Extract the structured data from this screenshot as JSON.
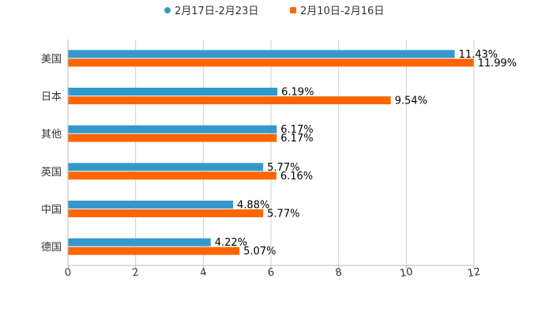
{
  "chart_data": {
    "type": "bar",
    "orientation": "horizontal",
    "categories": [
      "美国",
      "日本",
      "其他",
      "英国",
      "中国",
      "德国"
    ],
    "series": [
      {
        "name": "2月17日-2月23日",
        "color": "#3399CC",
        "values": [
          11.43,
          6.19,
          6.17,
          5.77,
          4.88,
          4.22
        ],
        "labels": [
          "11.43%",
          "6.19%",
          "6.17%",
          "5.77%",
          "4.88%",
          "4.22%"
        ]
      },
      {
        "name": "2月10日-2月16日",
        "color": "#FF6600",
        "values": [
          11.99,
          9.54,
          6.17,
          6.16,
          5.77,
          5.07
        ],
        "labels": [
          "11.99%",
          "9.54%",
          "6.17%",
          "6.16%",
          "5.77%",
          "5.07%"
        ]
      }
    ],
    "xlim": [
      0,
      12
    ],
    "xticks": [
      0,
      2,
      4,
      6,
      8,
      10,
      12
    ],
    "xtick_labels": [
      "0",
      "2",
      "4",
      "6",
      "8",
      "10",
      "12"
    ],
    "grid": true,
    "legend": "top-center"
  }
}
